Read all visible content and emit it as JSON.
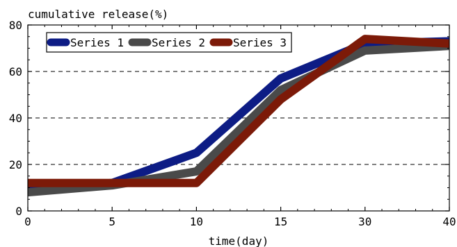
{
  "chart_data": {
    "type": "line",
    "ylabel": "cumulative release(%)",
    "xlabel": "time(day)",
    "categories": [
      "0",
      "5",
      "10",
      "15",
      "30",
      "40"
    ],
    "ylim": [
      0,
      80
    ],
    "yticks": [
      "0",
      "20",
      "40",
      "60",
      "80"
    ],
    "grid": "horizontal-dashed",
    "legend_position": "top-left",
    "series": [
      {
        "name": "Series 1",
        "color": "#0d1c85",
        "values": [
          10,
          12,
          25,
          57,
          72,
          73
        ]
      },
      {
        "name": "Series 2",
        "color": "#4a4a4a",
        "values": [
          8,
          11,
          17,
          52,
          69,
          71
        ]
      },
      {
        "name": "Series 3",
        "color": "#7c1a08",
        "values": [
          12,
          12,
          12,
          48,
          74,
          72
        ]
      }
    ]
  }
}
